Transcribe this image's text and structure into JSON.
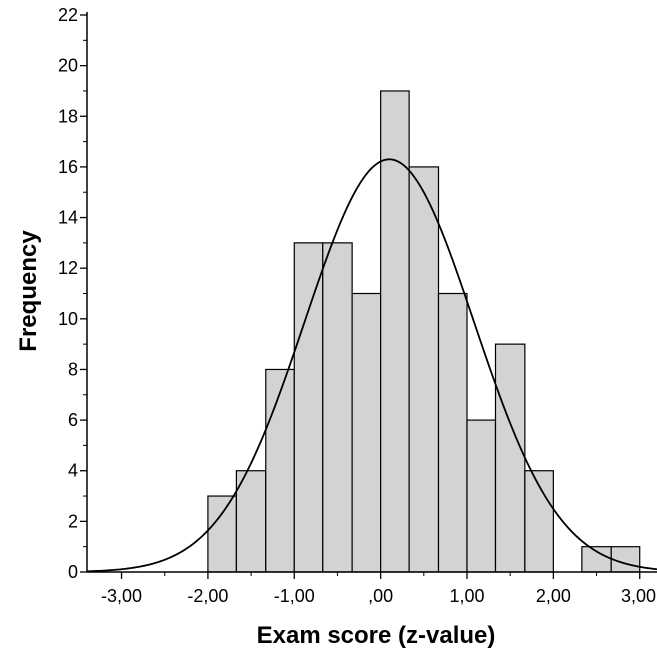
{
  "chart_data": {
    "type": "bar",
    "title": "",
    "xlabel": "Exam score (z-value)",
    "ylabel": "Frequency",
    "xlim": [
      -3.4,
      3.2
    ],
    "ylim": [
      0,
      22
    ],
    "grid": false,
    "bar_color": "#d3d3d3",
    "edge_color": "#000000",
    "curve_color": "#000000",
    "x_ticks": [
      {
        "value": -3,
        "label": "-3,00"
      },
      {
        "value": -2,
        "label": "-2,00"
      },
      {
        "value": -1,
        "label": "-1,00"
      },
      {
        "value": 0,
        "label": ",00"
      },
      {
        "value": 1,
        "label": "1,00"
      },
      {
        "value": 2,
        "label": "2,00"
      },
      {
        "value": 3,
        "label": "3,00"
      }
    ],
    "y_ticks": [
      0,
      2,
      4,
      6,
      8,
      10,
      12,
      14,
      16,
      18,
      20,
      22
    ],
    "bins": [
      {
        "x0": -2.0,
        "x1": -1.67,
        "count": 3
      },
      {
        "x0": -1.67,
        "x1": -1.33,
        "count": 4
      },
      {
        "x0": -1.33,
        "x1": -1.0,
        "count": 8
      },
      {
        "x0": -1.0,
        "x1": -0.67,
        "count": 13
      },
      {
        "x0": -0.67,
        "x1": -0.33,
        "count": 13
      },
      {
        "x0": -0.33,
        "x1": 0.0,
        "count": 11
      },
      {
        "x0": 0.0,
        "x1": 0.33,
        "count": 19
      },
      {
        "x0": 0.33,
        "x1": 0.67,
        "count": 16
      },
      {
        "x0": 0.67,
        "x1": 1.0,
        "count": 11
      },
      {
        "x0": 1.0,
        "x1": 1.33,
        "count": 6
      },
      {
        "x0": 1.33,
        "x1": 1.67,
        "count": 9
      },
      {
        "x0": 1.67,
        "x1": 2.0,
        "count": 4
      },
      {
        "x0": 2.33,
        "x1": 2.67,
        "count": 1
      },
      {
        "x0": 2.67,
        "x1": 3.0,
        "count": 1
      }
    ],
    "normal_curve": {
      "mean": 0.1,
      "sd": 0.98,
      "peak": 16.3
    }
  }
}
